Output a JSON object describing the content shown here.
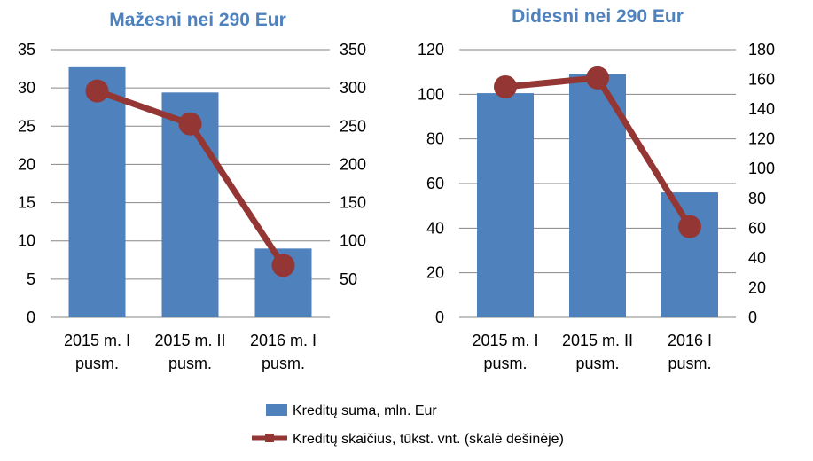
{
  "chart_data": [
    {
      "type": "bar",
      "title": "Mažesni nei 290 Eur",
      "categories": [
        [
          "2015 m. I",
          "pusm."
        ],
        [
          "2015 m. II",
          "pusm."
        ],
        [
          "2016 m. I",
          "pusm."
        ]
      ],
      "series": [
        {
          "name": "Kreditų suma, mln. Eur",
          "type": "bar",
          "axis": "left",
          "values": [
            32.7,
            29.4,
            9.0
          ]
        },
        {
          "name": "Kreditų skaičius, tūkst. vnt. (skalė dešinėje)",
          "type": "line",
          "axis": "right",
          "values": [
            296,
            253,
            68
          ]
        }
      ],
      "ylim": [
        0,
        35
      ],
      "yticks": [
        0,
        5,
        10,
        15,
        20,
        25,
        30,
        35
      ],
      "y2lim": [
        0,
        350
      ],
      "y2ticks": [
        50,
        100,
        150,
        200,
        250,
        300,
        350
      ]
    },
    {
      "type": "bar",
      "title": "Didesni nei 290 Eur",
      "categories": [
        [
          "2015 m. I",
          "pusm."
        ],
        [
          "2015 m. II",
          "pusm."
        ],
        [
          "2016 I",
          "pusm."
        ]
      ],
      "series": [
        {
          "name": "Kreditų suma, mln. Eur",
          "type": "bar",
          "axis": "left",
          "values": [
            100.5,
            109.0,
            56.0
          ]
        },
        {
          "name": "Kreditų skaičius, tūkst. vnt. (skalė dešinėje)",
          "type": "line",
          "axis": "right",
          "values": [
            155,
            161,
            61
          ]
        }
      ],
      "ylim": [
        0,
        120
      ],
      "yticks": [
        0,
        20,
        40,
        60,
        80,
        100,
        120
      ],
      "y2lim": [
        0,
        180
      ],
      "y2ticks": [
        0,
        20,
        40,
        60,
        80,
        100,
        120,
        140,
        160,
        180
      ]
    }
  ],
  "legend": {
    "position": "bottom-center",
    "items": [
      {
        "label": "Kreditų suma, mln. Eur",
        "kind": "bar"
      },
      {
        "label": "Kreditų skaičius, tūkst. vnt. (skalė dešinėje)",
        "kind": "line"
      }
    ]
  },
  "colors": {
    "bar": "#4f81bd",
    "line": "#943634",
    "title": "#4f81bd",
    "grid": "#868686",
    "text": "#000000"
  }
}
